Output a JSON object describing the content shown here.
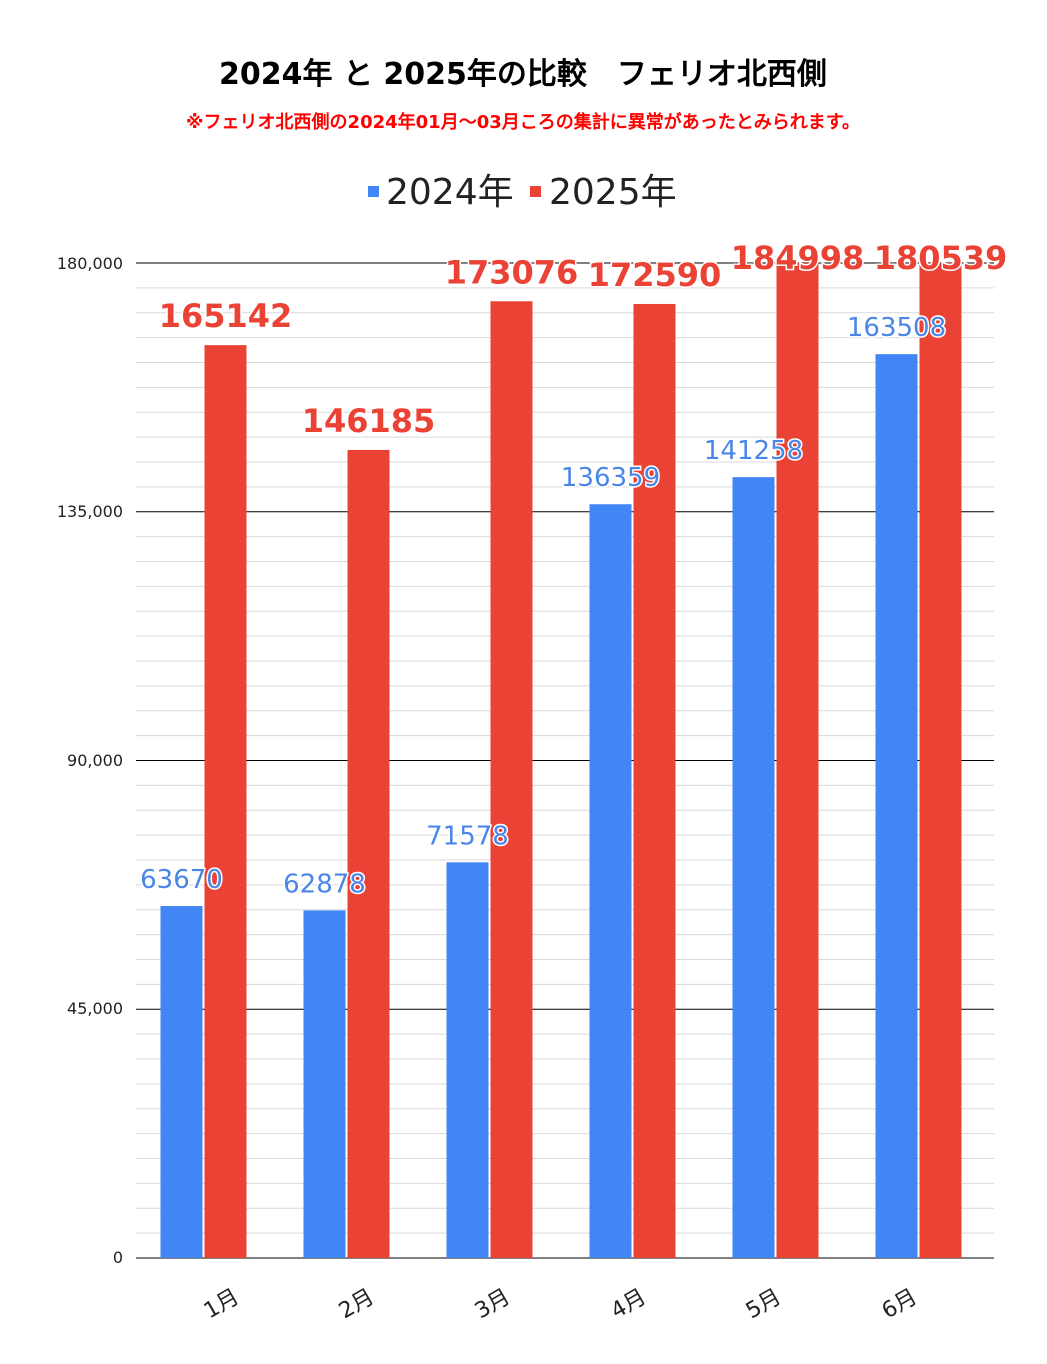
{
  "chart_data": {
    "type": "bar",
    "title": "2024年 と 2025年の比較　フェリオ北西側",
    "subtitle": "※フェリオ北西側の2024年01月～03月ころの集計に異常があったとみられます。",
    "categories": [
      "1月",
      "2月",
      "3月",
      "4月",
      "5月",
      "6月"
    ],
    "series": [
      {
        "name": "2024年",
        "color": "#4285f4",
        "values": [
          63670,
          62878,
          71578,
          136359,
          141258,
          163508
        ]
      },
      {
        "name": "2025年",
        "color": "#ea4335",
        "values": [
          165142,
          146185,
          173076,
          172590,
          184998,
          180539
        ]
      }
    ],
    "data_labels": {
      "2024年": [
        "63670",
        "62878",
        "71578",
        "136359",
        "141258",
        "163508"
      ],
      "2025年": [
        "165142",
        "146185",
        "173076",
        "172590",
        "184998",
        "180539"
      ]
    },
    "yticks": [
      "0",
      "45,000",
      "90,000",
      "135,000",
      "180,000"
    ],
    "ylim": [
      0,
      180000
    ],
    "xlabel": "",
    "ylabel": "",
    "legend_position": "top",
    "grid": true
  }
}
